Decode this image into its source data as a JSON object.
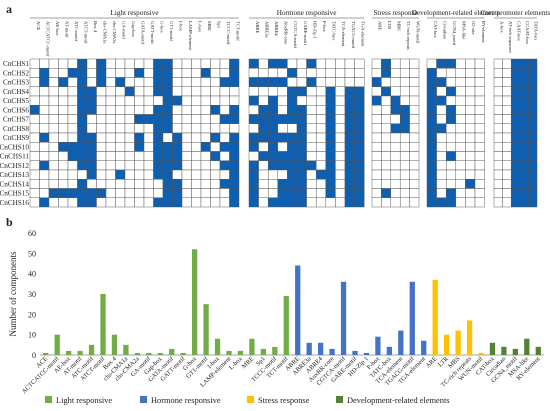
{
  "panel_labels": {
    "a": "a",
    "b": "b"
  },
  "colors": {
    "filled": "#0f5fb0",
    "empty": "#ffffff",
    "grid": "#555555",
    "light": "#70ad47",
    "hormone": "#4472c4",
    "stress": "#ffc000",
    "dev": "#548235",
    "core": "#548235"
  },
  "heatmap": {
    "groups": [
      {
        "name": "Light responsive",
        "cols": [
          "ACE",
          "ACTCATCC-motif",
          "AE-box",
          "AT-motif",
          "ATC-motif",
          "ATCT-motif",
          "Box 4",
          "chs-CMA1a",
          "chs-CMA2a",
          "GA-motif",
          "Gap-box",
          "GATA-motif",
          "GATT-motif",
          "G-box",
          "GT1-motif",
          "I-box",
          "LAMP-element",
          "L-box",
          "MRE",
          "Sp1",
          "TCCC-motif",
          "TCT-motif"
        ]
      },
      {
        "name": "Hormone responsive",
        "cols": [
          "ABRE",
          "ABRE3a",
          "ABRE4",
          "AuxRR-core",
          "CGTCA-motif",
          "GARE-motif",
          "HD-Zip 1",
          "P-box",
          "TATC-box",
          "TCA-element",
          "TGACG-motif",
          "TGA-element"
        ]
      },
      {
        "name": "Stress response",
        "cols": [
          "ARE",
          "LTR",
          "MBS",
          "TC-rich repeats",
          "WUN-motif"
        ]
      },
      {
        "name": "Development-related elements",
        "cols": [
          "CAT-box",
          "Circadian",
          "GCN4_motif",
          "MSA-like",
          "O2-site",
          "RY-element"
        ]
      },
      {
        "name": "Core promoter elements",
        "cols": [
          "A-box",
          "AT-rich sequence",
          "CAAT-box",
          "CCAAT-box",
          "TATA-box"
        ]
      }
    ],
    "rows": [
      "CnCHS1",
      "CnCHS2",
      "CnCHS3",
      "CnCHS4",
      "CnCHS5",
      "CnCHS6",
      "CnCHS7",
      "CnCHS8",
      "CnCHS9",
      "CnCHS10",
      "CnCHS11",
      "CnCHS12",
      "CnCHS13",
      "CnCHS14",
      "CnCHS15",
      "CnCHS16"
    ],
    "matrix": [
      [
        "0000010100000110000001",
        "101100100000",
        "01000",
        "011000",
        "00111"
      ],
      [
        "0100110100010110001001",
        "000010000000",
        "01000",
        "100000",
        "00111"
      ],
      [
        "0101010101000110000011",
        "111100100000",
        "10000",
        "110000",
        "00111"
      ],
      [
        "0000011000100110000000",
        "000011001011",
        "01000",
        "101000",
        "00111"
      ],
      [
        "0000011000000011000000",
        "101010001011",
        "10100",
        "110000",
        "00111"
      ],
      [
        "1000011000000110000101",
        "011011001011",
        "00110",
        "101000",
        "00111"
      ],
      [
        "0000010000011110000011",
        "111111001011",
        "00010",
        "101000",
        "00111"
      ],
      [
        "0000010000000110000000",
        "011001001011",
        "00110",
        "110000",
        "00111"
      ],
      [
        "0100011000010101000101",
        "111111001011",
        "00000",
        "100000",
        "00111"
      ],
      [
        "0001111000010111001011",
        "101011001011",
        "00000",
        "100000",
        "00111"
      ],
      [
        "0000111000000111000101",
        "011111001011",
        "00000",
        "101000",
        "00111"
      ],
      [
        "0100011000000111000011",
        "101111101011",
        "00000",
        "100000",
        "00111"
      ],
      [
        "0000001001000110000001",
        "100011011011",
        "00000",
        "100000",
        "00111"
      ],
      [
        "0000010000000011000011",
        "100111001011",
        "00000",
        "100010",
        "00111"
      ],
      [
        "0011111100000011000001",
        "100111001011",
        "01000",
        "101000",
        "00111"
      ],
      [
        "0100011000000111000001",
        "101111000011",
        "00000",
        "111000",
        "00111"
      ]
    ]
  },
  "chart_data": {
    "type": "bar",
    "ylabel": "Number of components",
    "ylim": [
      0,
      60
    ],
    "yticks": [
      0,
      10,
      20,
      30,
      40,
      50,
      60
    ],
    "categories": [
      "ACE",
      "ACTCATCC-motif",
      "AE-box",
      "AT-motif",
      "ATC-motif",
      "ATCT-motif",
      "Box 4",
      "chs-CMA1a",
      "chs-CMA2a",
      "GA-motif",
      "Gap-box",
      "GATA-motif",
      "GATT-motif",
      "G-box",
      "GT1-motif",
      "I-box",
      "LAMP-element",
      "L-box",
      "MRE",
      "Sp1",
      "TCCC-motif",
      "TCT-motif",
      "ABRE",
      "ABRE3a",
      "ABRE4",
      "AuxRR-core",
      "CGTCA-motif",
      "GARE-motif",
      "HD-Zip 1",
      "P-box",
      "TATC-box",
      "TCA-element",
      "TGACG-motif",
      "TGA-element",
      "ARE",
      "LTR",
      "MBS",
      "TC-rich repeats",
      "WUN-motif",
      "CAT-box",
      "Circadian",
      "GCN4_motif",
      "MSA-like",
      "RY-element"
    ],
    "values": [
      1,
      10,
      2,
      2,
      5,
      30,
      10,
      5,
      1,
      1,
      1,
      3,
      1,
      52,
      25,
      8,
      2,
      2,
      8,
      3,
      4,
      29,
      44,
      6,
      6,
      3,
      36,
      2,
      1,
      9,
      4,
      12,
      36,
      7,
      37,
      10,
      12,
      17,
      1,
      6,
      4,
      3,
      8,
      4
    ],
    "groups": [
      3,
      3,
      3,
      3,
      3,
      3,
      3,
      3,
      3,
      3,
      3,
      3,
      3,
      3,
      3,
      3,
      3,
      3,
      3,
      3,
      3,
      3,
      4,
      4,
      4,
      4,
      4,
      4,
      4,
      4,
      4,
      4,
      4,
      4,
      5,
      5,
      5,
      5,
      5,
      6,
      6,
      6,
      6,
      6
    ],
    "legend": [
      {
        "name": "Light responsive",
        "color": "#70ad47"
      },
      {
        "name": "Hormone responsive",
        "color": "#4472c4"
      },
      {
        "name": "Stress response",
        "color": "#ffc000"
      },
      {
        "name": "Development-related elements",
        "color": "#548235"
      }
    ],
    "legend_position": "bottom",
    "grid": false
  }
}
